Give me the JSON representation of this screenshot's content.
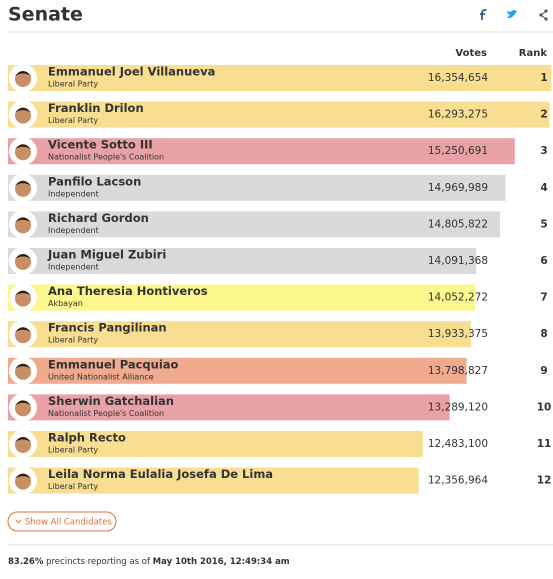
{
  "header": {
    "title": "Senate"
  },
  "chart_data": {
    "type": "bar",
    "orientation": "horizontal",
    "columns": [
      "Votes",
      "Rank"
    ],
    "categories": [
      "Emmanuel Joel Villanueva",
      "Franklin Drilon",
      "Vicente Sotto III",
      "Panfilo Lacson",
      "Richard Gordon",
      "Juan Miguel Zubiri",
      "Ana Theresia Hontiveros",
      "Francis Pangilinan",
      "Emmanuel Pacquiao",
      "Sherwin Gatchalian",
      "Ralph Recto",
      "Leila Norma Eulalia Josefa De Lima"
    ],
    "parties": [
      "Liberal Party",
      "Liberal Party",
      "Nationalist People's Coalition",
      "Independent",
      "Independent",
      "Independent",
      "Akbayan",
      "Liberal Party",
      "United Nationalist Alliance",
      "Nationalist People's Coalition",
      "Liberal Party",
      "Liberal Party"
    ],
    "values": [
      16354654,
      16293275,
      15250691,
      14969989,
      14805822,
      14091368,
      14052272,
      13933375,
      13798827,
      13289120,
      12483100,
      12356964
    ],
    "value_labels": [
      "16,354,654",
      "16,293,275",
      "15,250,691",
      "14,969,989",
      "14,805,822",
      "14,091,368",
      "14,052,272",
      "13,933,375",
      "13,798,827",
      "13,289,120",
      "12,483,100",
      "12,356,964"
    ],
    "ranks": [
      1,
      2,
      3,
      4,
      5,
      6,
      7,
      8,
      9,
      10,
      11,
      12
    ],
    "colors": [
      "#f7de91",
      "#f7de91",
      "#e8a1a4",
      "#dadada",
      "#dadada",
      "#dadada",
      "#fbf78c",
      "#f7de91",
      "#f0aa8e",
      "#e8a1a4",
      "#f7de91",
      "#f7de91"
    ],
    "xlim": [
      0,
      16400000
    ]
  },
  "button": "Show All Candidates",
  "footer": {
    "percent": "83.26%",
    "text": " precincts reporting as of ",
    "date": "May 10th 2016, 12:49:34 am"
  }
}
